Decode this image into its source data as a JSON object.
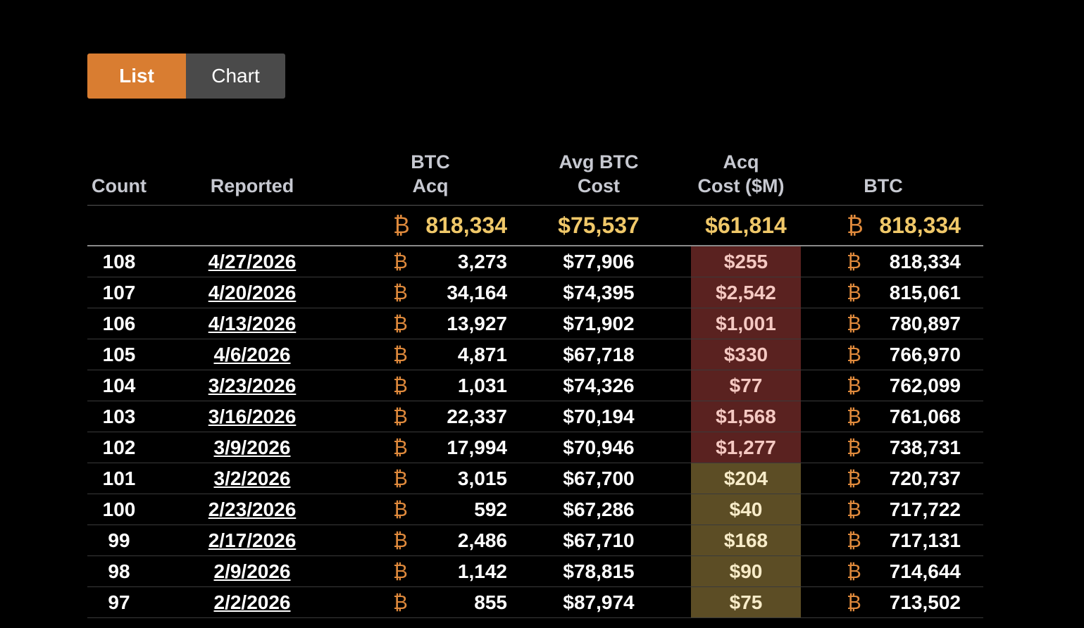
{
  "view_toggle": {
    "list_label": "List",
    "chart_label": "Chart",
    "active": "List"
  },
  "table": {
    "headers": {
      "count": "Count",
      "reported": "Reported",
      "btc_acq_line1": "BTC",
      "btc_acq_line2": "Acq",
      "avg_cost_line1": "Avg BTC",
      "avg_cost_line2": "Cost",
      "acq_cost_line1": "Acq",
      "acq_cost_line2": "Cost ($M)",
      "btc": "BTC"
    },
    "summary": {
      "btc_symbol": "₿",
      "btc_acq": "818,334",
      "avg_cost": "$75,537",
      "acq_cost": "$61,814",
      "btc_total": "818,334"
    },
    "btc_symbol": "₿",
    "rows": [
      {
        "count": "108",
        "reported": "4/27/2026",
        "btc_acq": "3,273",
        "avg_cost": "$77,906",
        "acq_cost": "$255",
        "btc_total": "818,334",
        "cost_tone": "red"
      },
      {
        "count": "107",
        "reported": "4/20/2026",
        "btc_acq": "34,164",
        "avg_cost": "$74,395",
        "acq_cost": "$2,542",
        "btc_total": "815,061",
        "cost_tone": "red"
      },
      {
        "count": "106",
        "reported": "4/13/2026",
        "btc_acq": "13,927",
        "avg_cost": "$71,902",
        "acq_cost": "$1,001",
        "btc_total": "780,897",
        "cost_tone": "red"
      },
      {
        "count": "105",
        "reported": "4/6/2026",
        "btc_acq": "4,871",
        "avg_cost": "$67,718",
        "acq_cost": "$330",
        "btc_total": "766,970",
        "cost_tone": "red"
      },
      {
        "count": "104",
        "reported": "3/23/2026",
        "btc_acq": "1,031",
        "avg_cost": "$74,326",
        "acq_cost": "$77",
        "btc_total": "762,099",
        "cost_tone": "red"
      },
      {
        "count": "103",
        "reported": "3/16/2026",
        "btc_acq": "22,337",
        "avg_cost": "$70,194",
        "acq_cost": "$1,568",
        "btc_total": "761,068",
        "cost_tone": "red"
      },
      {
        "count": "102",
        "reported": "3/9/2026",
        "btc_acq": "17,994",
        "avg_cost": "$70,946",
        "acq_cost": "$1,277",
        "btc_total": "738,731",
        "cost_tone": "red"
      },
      {
        "count": "101",
        "reported": "3/2/2026",
        "btc_acq": "3,015",
        "avg_cost": "$67,700",
        "acq_cost": "$204",
        "btc_total": "720,737",
        "cost_tone": "yellow"
      },
      {
        "count": "100",
        "reported": "2/23/2026",
        "btc_acq": "592",
        "avg_cost": "$67,286",
        "acq_cost": "$40",
        "btc_total": "717,722",
        "cost_tone": "yellow"
      },
      {
        "count": "99",
        "reported": "2/17/2026",
        "btc_acq": "2,486",
        "avg_cost": "$67,710",
        "acq_cost": "$168",
        "btc_total": "717,131",
        "cost_tone": "yellow"
      },
      {
        "count": "98",
        "reported": "2/9/2026",
        "btc_acq": "1,142",
        "avg_cost": "$78,815",
        "acq_cost": "$90",
        "btc_total": "714,644",
        "cost_tone": "yellow"
      },
      {
        "count": "97",
        "reported": "2/2/2026",
        "btc_acq": "855",
        "avg_cost": "$87,974",
        "acq_cost": "$75",
        "btc_total": "713,502",
        "cost_tone": "yellow"
      }
    ]
  },
  "colors": {
    "accent": "#d97d31",
    "summary_gold": "#f0c869",
    "btc_symbol": "#e08a3c",
    "cost_red_bg": "#5a2220",
    "cost_yellow_bg": "#5c4d25"
  }
}
